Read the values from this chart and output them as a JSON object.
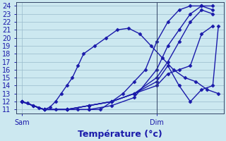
{
  "background_color": "#cce8f0",
  "grid_color": "#99bbcc",
  "line_color": "#1a1aaa",
  "marker": "D",
  "markersize": 2.5,
  "linewidth": 1.0,
  "ylabel_ticks": [
    11,
    12,
    13,
    14,
    15,
    16,
    17,
    18,
    19,
    20,
    21,
    22,
    23,
    24
  ],
  "xlabel": "Température (°c)",
  "xlabel_fontsize": 9,
  "tick_fontsize": 7,
  "xtick_labels": [
    "Sam",
    "Dim"
  ],
  "sam_x": 0,
  "dim_x": 24,
  "xlim": [
    -1,
    36
  ],
  "ylim": [
    10.5,
    24.5
  ],
  "series": [
    {
      "x": [
        0,
        1,
        2,
        3,
        4,
        5,
        6,
        7,
        8,
        9,
        10,
        11,
        13,
        15,
        17,
        19,
        21,
        23,
        25,
        27,
        29,
        31,
        33,
        35
      ],
      "y": [
        12,
        11.8,
        11.5,
        11.2,
        11,
        11.3,
        12,
        13,
        14,
        15,
        16.5,
        18,
        19,
        20,
        21,
        21.2,
        20.5,
        19,
        17.5,
        16,
        15,
        14.5,
        13.5,
        13
      ]
    },
    {
      "x": [
        0,
        2,
        4,
        6,
        8,
        10,
        12,
        14,
        16,
        18,
        20,
        22,
        24,
        26,
        28,
        30,
        32,
        34
      ],
      "y": [
        12,
        11.5,
        11,
        11,
        11,
        11,
        11,
        11,
        12,
        13,
        14.5,
        16,
        19.5,
        22,
        23.5,
        24,
        24,
        23.5
      ]
    },
    {
      "x": [
        0,
        4,
        8,
        12,
        16,
        20,
        24,
        26,
        28,
        30,
        32,
        34
      ],
      "y": [
        12,
        11,
        11,
        11,
        11.5,
        12.5,
        16,
        19,
        21,
        23,
        24,
        24
      ]
    },
    {
      "x": [
        0,
        4,
        8,
        12,
        16,
        20,
        24,
        26,
        28,
        30,
        32,
        34
      ],
      "y": [
        12,
        11,
        11,
        11.5,
        12,
        13,
        15,
        17,
        19.5,
        22,
        23.5,
        23
      ]
    },
    {
      "x": [
        0,
        4,
        8,
        12,
        16,
        20,
        24,
        26,
        28,
        30,
        32,
        34,
        35
      ],
      "y": [
        12,
        11,
        11,
        11.5,
        12,
        13,
        14.5,
        16.5,
        14,
        12,
        13.5,
        14,
        21.5
      ]
    },
    {
      "x": [
        0,
        4,
        8,
        12,
        16,
        20,
        24,
        26,
        28,
        30,
        32,
        34
      ],
      "y": [
        12,
        11,
        11,
        11.5,
        12,
        13,
        14,
        15.5,
        16,
        16.5,
        20.5,
        21.5
      ]
    }
  ]
}
